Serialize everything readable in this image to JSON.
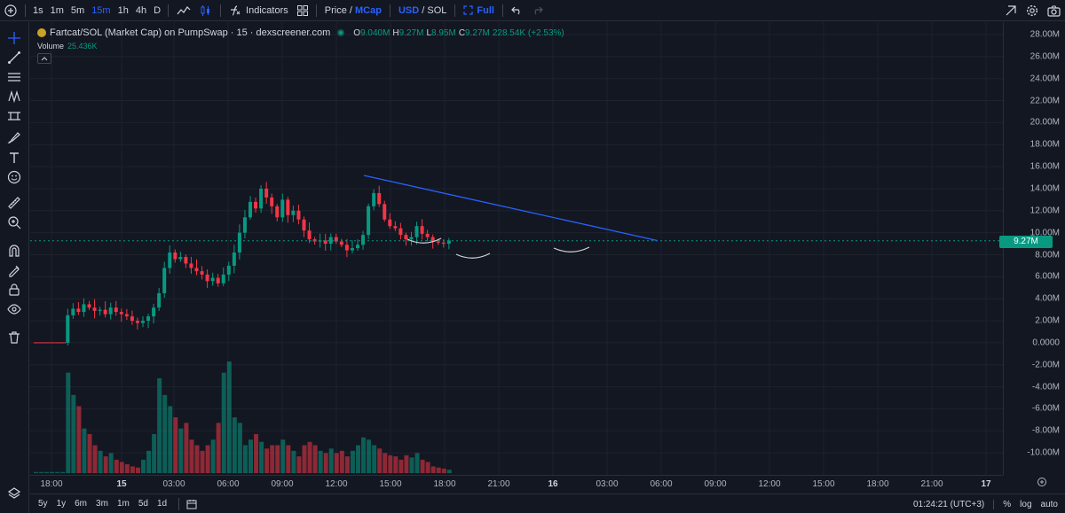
{
  "toolbar": {
    "intervals": [
      "1s",
      "1m",
      "5m",
      "15m",
      "1h",
      "4h",
      "D"
    ],
    "active_interval": "15m",
    "indicators_label": "Indicators",
    "price_label": "Price",
    "slash": "/",
    "mcap_label": "MCap",
    "usd_label": "USD",
    "sol_label": "SOL",
    "full_label": "Full"
  },
  "legend": {
    "title": "Fartcat/SOL (Market Cap) on PumpSwap · 15 · dexscreener.com",
    "o_key": "O",
    "o_val": "9.040M",
    "h_key": "H",
    "h_val": "9.27M",
    "l_key": "L",
    "l_val": "8.95M",
    "c_key": "C",
    "c_val": "9.27M",
    "change": "228.54K (+2.53%)",
    "volume_label": "Volume",
    "volume_value": "25.436K"
  },
  "price_axis": {
    "ticks": [
      "28.00M",
      "26.00M",
      "24.00M",
      "22.00M",
      "20.00M",
      "18.00M",
      "16.00M",
      "14.00M",
      "12.00M",
      "10.00M",
      "8.00M",
      "6.00M",
      "4.00M",
      "2.00M",
      "0.0000",
      "-2.00M",
      "-4.00M",
      "-6.00M",
      "-8.00M",
      "-10.00M"
    ],
    "current_price_label": "9.27M"
  },
  "time_axis": {
    "ticks": [
      "18:00",
      "15",
      "03:00",
      "06:00",
      "09:00",
      "12:00",
      "15:00",
      "18:00",
      "21:00",
      "16",
      "03:00",
      "06:00",
      "09:00",
      "12:00",
      "15:00",
      "18:00",
      "21:00",
      "17"
    ],
    "bold": [
      "15",
      "16",
      "17"
    ]
  },
  "bottom": {
    "ranges": [
      "5y",
      "1y",
      "6m",
      "3m",
      "1m",
      "5d",
      "1d"
    ],
    "clock": "01:24:21 (UTC+3)",
    "percent": "%",
    "log": "log",
    "auto": "auto"
  },
  "colors": {
    "up": "#089981",
    "down": "#f23645",
    "trendline": "#2962ff",
    "bg": "#131722"
  },
  "chart_data": {
    "type": "candlestick",
    "unit": "M",
    "ohlc_path": [
      0,
      0,
      0,
      0,
      0,
      0,
      2.5,
      3.1,
      2.8,
      3.5,
      3.2,
      2.9,
      3.0,
      2.6,
      3.2,
      2.8,
      2.6,
      2.4,
      2.0,
      1.8,
      2.0,
      2.4,
      3.2,
      4.5,
      6.8,
      8.2,
      7.6,
      7.8,
      7.2,
      6.8,
      6.5,
      6.2,
      5.6,
      5.9,
      5.4,
      6.2,
      7.0,
      8.2,
      10.0,
      11.4,
      12.8,
      12.2,
      14.0,
      13.2,
      12.4,
      11.4,
      13.0,
      11.6,
      12.0,
      11.2,
      10.2,
      9.4,
      9.2,
      9.3,
      9.0,
      9.6,
      9.2,
      8.9,
      8.4,
      8.6,
      8.9,
      9.8,
      12.4,
      13.6,
      12.6,
      11.2,
      10.6,
      10.4,
      9.8,
      9.4,
      9.6,
      10.6,
      9.9,
      9.6,
      9.2,
      9.1,
      9.0,
      9.3
    ],
    "volume_path": [
      0.1,
      0.1,
      0.1,
      0.1,
      0.1,
      0.1,
      9,
      7,
      6,
      4,
      3.5,
      2.5,
      2,
      1.5,
      1.8,
      1.2,
      1,
      0.8,
      0.6,
      0.5,
      1.2,
      2,
      3.5,
      8.5,
      7,
      6,
      5,
      4,
      4.5,
      3,
      2.5,
      2,
      2.5,
      3,
      4.5,
      9,
      10,
      5,
      4.5,
      2.5,
      3,
      3.5,
      2.8,
      2.2,
      2.5,
      2.5,
      3,
      2.5,
      2,
      1.5,
      2.5,
      2.8,
      2.5,
      2,
      1.8,
      2.2,
      1.8,
      2,
      1.5,
      2,
      2.5,
      3.2,
      3,
      2.5,
      2.2,
      1.8,
      1.6,
      1.5,
      1.2,
      1.6,
      1.4,
      1.8,
      1.2,
      1,
      0.6,
      0.5,
      0.4,
      0.3
    ],
    "current_price": 9.27,
    "trendline": {
      "from_price": 15.2,
      "to_price": 9.3
    }
  }
}
